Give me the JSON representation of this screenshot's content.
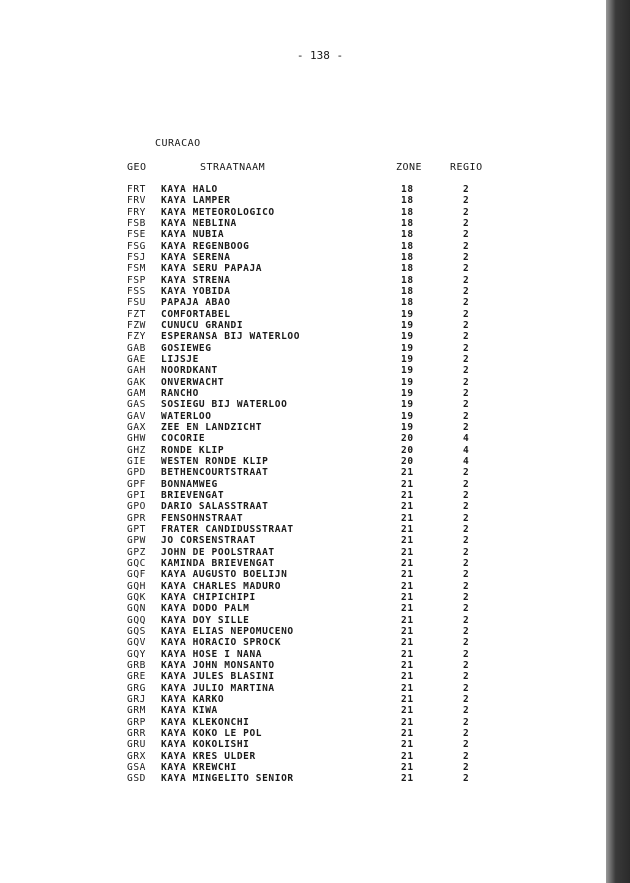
{
  "page_number": "- 138 -",
  "region": "CURACAO",
  "headers": {
    "geo": "GEO",
    "name": "STRAATNAAM",
    "zone": "ZONE",
    "regio": "REGIO"
  },
  "rows": [
    [
      "FRT",
      "KAYA HALO",
      "18",
      "2"
    ],
    [
      "FRV",
      "KAYA LAMPER",
      "18",
      "2"
    ],
    [
      "FRY",
      "KAYA METEOROLOGICO",
      "18",
      "2"
    ],
    [
      "FSB",
      "KAYA NEBLINA",
      "18",
      "2"
    ],
    [
      "FSE",
      "KAYA NUBIA",
      "18",
      "2"
    ],
    [
      "FSG",
      "KAYA REGENBOOG",
      "18",
      "2"
    ],
    [
      "FSJ",
      "KAYA SERENA",
      "18",
      "2"
    ],
    [
      "FSM",
      "KAYA SERU PAPAJA",
      "18",
      "2"
    ],
    [
      "FSP",
      "KAYA STRENA",
      "18",
      "2"
    ],
    [
      "FSS",
      "KAYA YOBIDA",
      "18",
      "2"
    ],
    [
      "FSU",
      "PAPAJA ABAO",
      "18",
      "2"
    ],
    [
      "FZT",
      "COMFORTABEL",
      "19",
      "2"
    ],
    [
      "FZW",
      "CUNUCU GRANDI",
      "19",
      "2"
    ],
    [
      "FZY",
      "ESPERANSA BIJ WATERLOO",
      "19",
      "2"
    ],
    [
      "GAB",
      "GOSIEWEG",
      "19",
      "2"
    ],
    [
      "GAE",
      "LIJSJE",
      "19",
      "2"
    ],
    [
      "GAH",
      "NOORDKANT",
      "19",
      "2"
    ],
    [
      "GAK",
      "ONVERWACHT",
      "19",
      "2"
    ],
    [
      "GAM",
      "RANCHO",
      "19",
      "2"
    ],
    [
      "GAS",
      "SOSIEGU BIJ WATERLOO",
      "19",
      "2"
    ],
    [
      "GAV",
      "WATERLOO",
      "19",
      "2"
    ],
    [
      "GAX",
      "ZEE EN LANDZICHT",
      "19",
      "2"
    ],
    [
      "GHW",
      "COCORIE",
      "20",
      "4"
    ],
    [
      "GHZ",
      "RONDE KLIP",
      "20",
      "4"
    ],
    [
      "GIE",
      "WESTEN RONDE KLIP",
      "20",
      "4"
    ],
    [
      "GPD",
      "BETHENCOURTSTRAAT",
      "21",
      "2"
    ],
    [
      "GPF",
      "BONNAMWEG",
      "21",
      "2"
    ],
    [
      "GPI",
      "BRIEVENGAT",
      "21",
      "2"
    ],
    [
      "GPO",
      "DARIO SALASSTRAAT",
      "21",
      "2"
    ],
    [
      "GPR",
      "FENSOHNSTRAAT",
      "21",
      "2"
    ],
    [
      "GPT",
      "FRATER CANDIDUSSTRAAT",
      "21",
      "2"
    ],
    [
      "GPW",
      "JO CORSENSTRAAT",
      "21",
      "2"
    ],
    [
      "GPZ",
      "JOHN DE POOLSTRAAT",
      "21",
      "2"
    ],
    [
      "GQC",
      "KAMINDA BRIEVENGAT",
      "21",
      "2"
    ],
    [
      "GQF",
      "KAYA AUGUSTO BOELIJN",
      "21",
      "2"
    ],
    [
      "GQH",
      "KAYA CHARLES MADURO",
      "21",
      "2"
    ],
    [
      "GQK",
      "KAYA CHIPICHIPI",
      "21",
      "2"
    ],
    [
      "GQN",
      "KAYA DODO PALM",
      "21",
      "2"
    ],
    [
      "GQQ",
      "KAYA DOY SILLE",
      "21",
      "2"
    ],
    [
      "GQS",
      "KAYA ELIAS NEPOMUCENO",
      "21",
      "2"
    ],
    [
      "GQV",
      "KAYA HORACIO SPROCK",
      "21",
      "2"
    ],
    [
      "GQY",
      "KAYA HOSE I NANA",
      "21",
      "2"
    ],
    [
      "GRB",
      "KAYA JOHN MONSANTO",
      "21",
      "2"
    ],
    [
      "GRE",
      "KAYA JULES BLASINI",
      "21",
      "2"
    ],
    [
      "GRG",
      "KAYA JULIO MARTINA",
      "21",
      "2"
    ],
    [
      "GRJ",
      "KAYA KARKO",
      "21",
      "2"
    ],
    [
      "GRM",
      "KAYA KIWA",
      "21",
      "2"
    ],
    [
      "GRP",
      "KAYA KLEKONCHI",
      "21",
      "2"
    ],
    [
      "GRR",
      "KAYA KOKO LE POL",
      "21",
      "2"
    ],
    [
      "GRU",
      "KAYA KOKOLISHI",
      "21",
      "2"
    ],
    [
      "GRX",
      "KAYA KRES ULDER",
      "21",
      "2"
    ],
    [
      "GSA",
      "KAYA KREWCHI",
      "21",
      "2"
    ],
    [
      "GSD",
      "KAYA MINGELITO SENIOR",
      "21",
      "2"
    ]
  ]
}
